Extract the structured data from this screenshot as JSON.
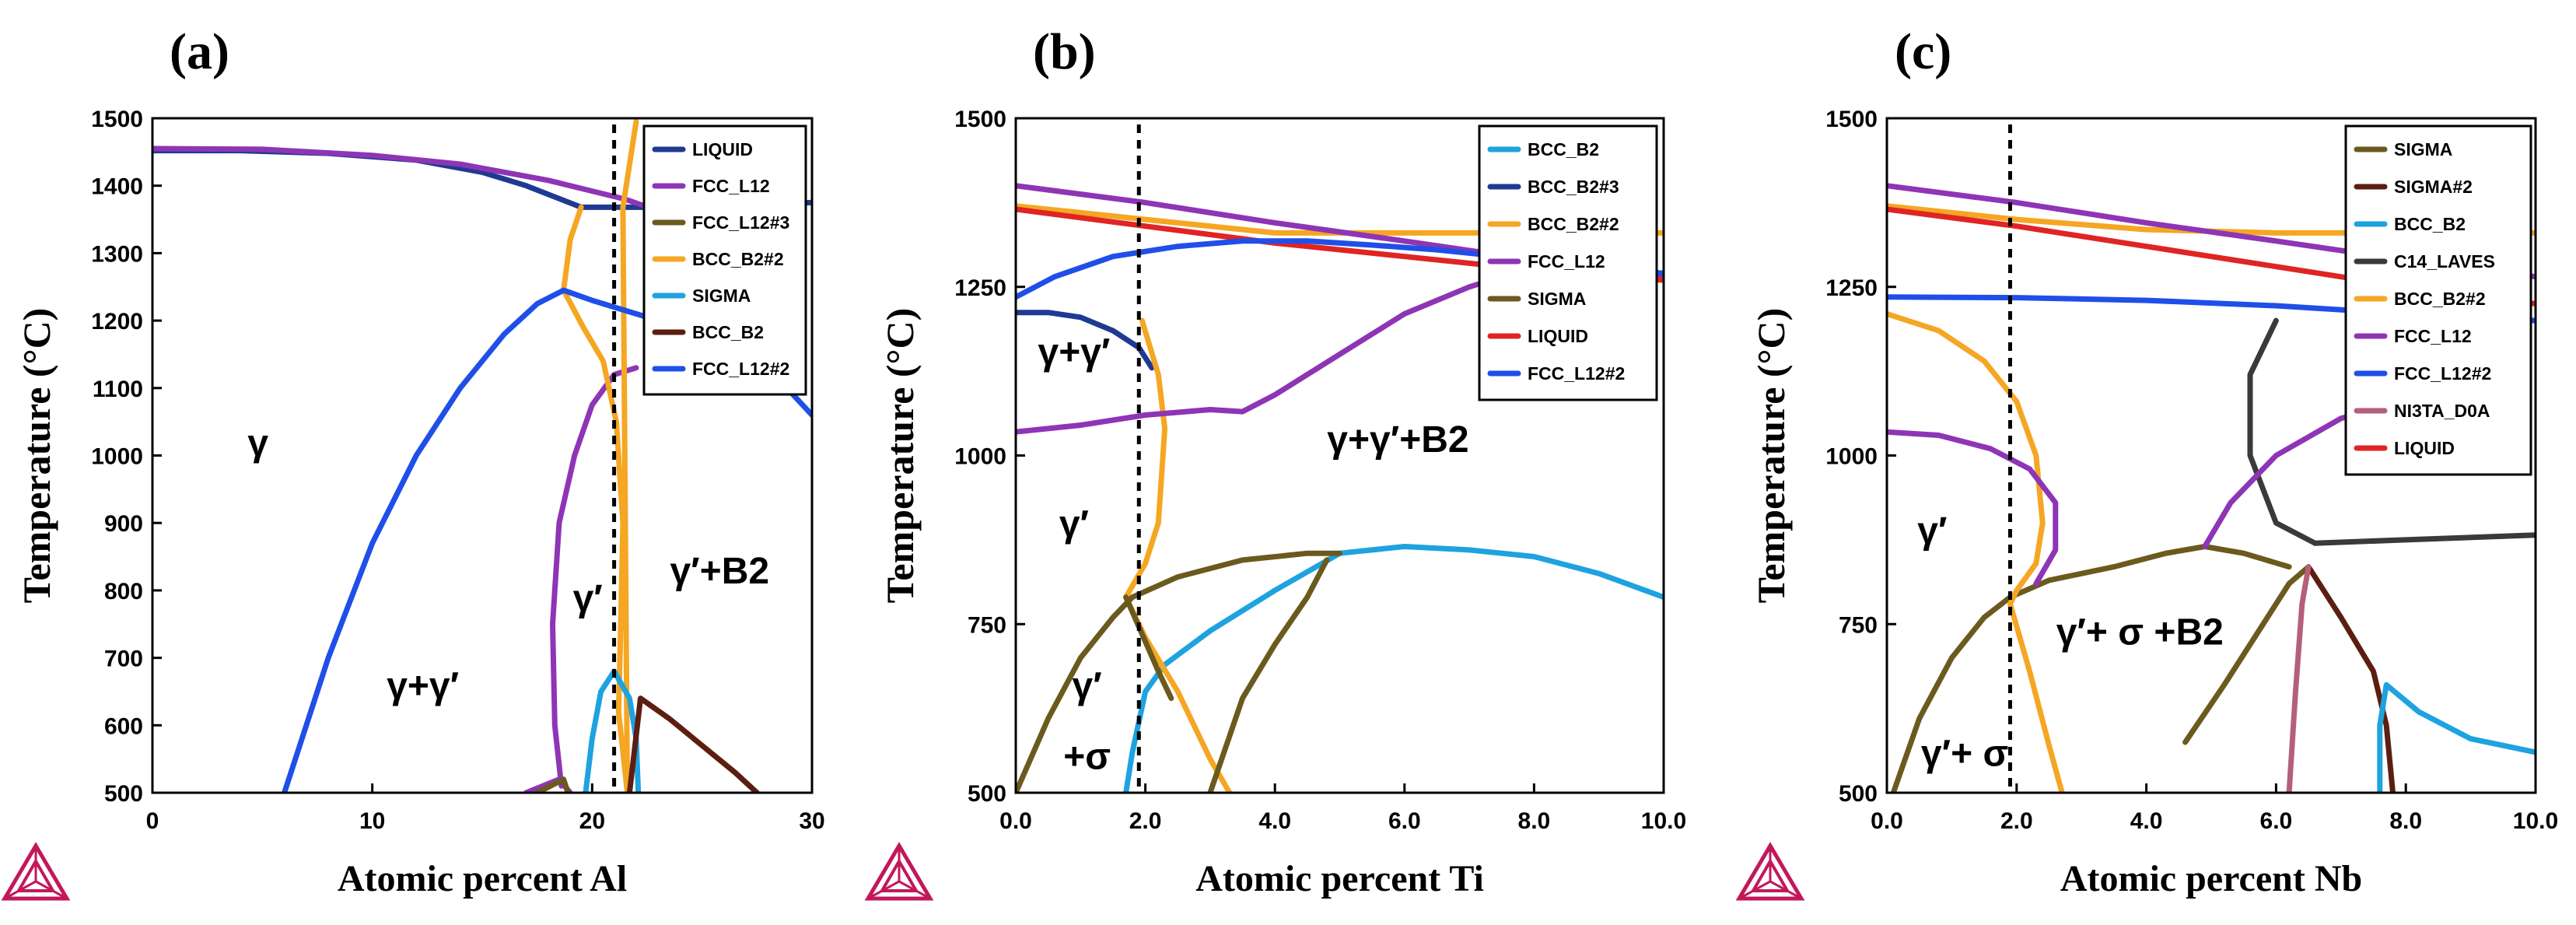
{
  "chart_data": [
    {
      "type": "line",
      "panel_label": "(a)",
      "title": "",
      "xlabel": "Atomic percent Al",
      "ylabel": "Temperature (°C)",
      "xlim": [
        0,
        30
      ],
      "ylim": [
        500,
        1500
      ],
      "xticks": [
        0,
        10,
        20,
        30
      ],
      "xtick_labels": [
        "0",
        "10",
        "20",
        "30"
      ],
      "yticks": [
        500,
        600,
        700,
        800,
        900,
        1000,
        1100,
        1200,
        1300,
        1400,
        1500
      ],
      "ytick_labels": [
        "500",
        "600",
        "700",
        "800",
        "900",
        "1000",
        "1100",
        "1200",
        "1300",
        "1400",
        "1500"
      ],
      "grid": false,
      "legend_position": "top-right",
      "marker_line_x": 21,
      "legend": [
        "LIQUID",
        "FCC_L12",
        "FCC_L12#3",
        "BCC_B2#2",
        "SIGMA",
        "BCC_B2",
        "FCC_L12#2"
      ],
      "series": [
        {
          "name": "LIQUID",
          "color": "#1f3a93",
          "x": [
            0,
            4,
            8,
            12,
            15,
            17,
            19.5,
            21,
            23,
            30
          ],
          "y": [
            1452,
            1452,
            1448,
            1438,
            1420,
            1400,
            1368,
            1368,
            1368,
            1375
          ]
        },
        {
          "name": "FCC_L12",
          "color": "#8e35b5",
          "x": [
            0,
            5,
            10,
            14,
            18,
            21.5,
            22.8
          ],
          "y": [
            1455,
            1454,
            1445,
            1432,
            1408,
            1380,
            1365
          ]
        },
        {
          "name": "FCC_L12",
          "color": "#8e35b5",
          "x": [
            18.6,
            18.3,
            18.2,
            18.5,
            19.2,
            20.0,
            21.0,
            22.0
          ],
          "y": [
            510,
            600,
            750,
            900,
            1000,
            1075,
            1120,
            1130
          ]
        },
        {
          "name": "FCC_L12",
          "color": "#8e35b5",
          "x": [
            17.0,
            18.5,
            19.0
          ],
          "y": [
            500,
            520,
            500
          ]
        },
        {
          "name": "FCC_L12#3",
          "color": "#6b5a1e",
          "x": [
            17.5,
            18.7,
            18.9
          ],
          "y": [
            500,
            520,
            500
          ]
        },
        {
          "name": "BCC_B2#2",
          "color": "#f5a623",
          "x": [
            19.5,
            19.0,
            18.7,
            19.6,
            20.5,
            21.1,
            21.4,
            21.3,
            21.2,
            21.6,
            21.4,
            22.0
          ],
          "y": [
            1368,
            1320,
            1245,
            1190,
            1140,
            1050,
            900,
            750,
            620,
            500,
            1368,
            1495
          ]
        },
        {
          "name": "SIGMA",
          "color": "#1fa2e0",
          "x": [
            19.7,
            20.0,
            20.4,
            21.0,
            21.7,
            22.0,
            22.1
          ],
          "y": [
            500,
            580,
            650,
            680,
            640,
            580,
            500
          ]
        },
        {
          "name": "BCC_B2",
          "color": "#5c1e10",
          "x": [
            21.7,
            22.2,
            23.5,
            25,
            26.5,
            27.5
          ],
          "y": [
            500,
            640,
            610,
            570,
            530,
            500
          ]
        },
        {
          "name": "FCC_L12#2",
          "color": "#1f4fe8",
          "x": [
            6,
            8,
            10,
            12,
            14,
            16,
            17.5,
            18.7,
            20,
            22,
            25,
            28,
            30
          ],
          "y": [
            500,
            700,
            870,
            1000,
            1100,
            1180,
            1225,
            1245,
            1230,
            1210,
            1180,
            1130,
            1060
          ]
        }
      ],
      "annotations": [
        {
          "text": "γ",
          "x": 4.8,
          "y": 1000
        },
        {
          "text": "γ+γ′",
          "x": 12.3,
          "y": 640
        },
        {
          "text": "γ′",
          "x": 19.8,
          "y": 770
        },
        {
          "text": "γ′+B2",
          "x": 25.8,
          "y": 810
        }
      ]
    },
    {
      "type": "line",
      "panel_label": "(b)",
      "title": "",
      "xlabel": "Atomic percent Ti",
      "ylabel": "Temperature (°C)",
      "xlim": [
        0,
        10
      ],
      "ylim": [
        500,
        1500
      ],
      "xticks": [
        0,
        2,
        4,
        6,
        8,
        10
      ],
      "xtick_labels": [
        "0.0",
        "2.0",
        "4.0",
        "6.0",
        "8.0",
        "10.0"
      ],
      "yticks": [
        500,
        750,
        1000,
        1250,
        1500
      ],
      "ytick_labels": [
        "500",
        "750",
        "1000",
        "1250",
        "1500"
      ],
      "grid": false,
      "legend_position": "top-right",
      "marker_line_x": 1.9,
      "legend": [
        "BCC_B2",
        "BCC_B2#3",
        "BCC_B2#2",
        "FCC_L12",
        "SIGMA",
        "LIQUID",
        "FCC_L12#2"
      ],
      "series": [
        {
          "name": "BCC_B2",
          "color": "#1fa2e0",
          "x": [
            1.7,
            1.8,
            2.0,
            2.3,
            3.0,
            4.0,
            5.0,
            6.0,
            7.0,
            8.0,
            9.0,
            10.0
          ],
          "y": [
            500,
            560,
            650,
            690,
            740,
            800,
            855,
            865,
            860,
            850,
            825,
            790
          ]
        },
        {
          "name": "BCC_B2#3",
          "color": "#1f3a93",
          "x": [
            0,
            0.5,
            1.0,
            1.5,
            1.9,
            2.1
          ],
          "y": [
            1212,
            1212,
            1205,
            1185,
            1160,
            1130
          ]
        },
        {
          "name": "BCC_B2#2",
          "color": "#f5a623",
          "x": [
            0,
            2,
            4,
            6,
            8,
            10
          ],
          "y": [
            1370,
            1350,
            1330,
            1330,
            1330,
            1330
          ]
        },
        {
          "name": "BCC_B2#2",
          "color": "#f5a623",
          "x": [
            1.95,
            2.2,
            2.3,
            2.2,
            2.0,
            1.7,
            2.0,
            2.5,
            3.0,
            3.3
          ],
          "y": [
            1200,
            1120,
            1040,
            900,
            840,
            790,
            730,
            650,
            550,
            500
          ]
        },
        {
          "name": "FCC_L12",
          "color": "#8e35b5",
          "x": [
            0,
            1,
            2,
            3,
            3.5,
            4,
            5,
            6,
            7,
            7.5
          ],
          "y": [
            1035,
            1045,
            1060,
            1068,
            1065,
            1090,
            1150,
            1210,
            1250,
            1265
          ]
        },
        {
          "name": "FCC_L12",
          "color": "#8e35b5",
          "x": [
            0,
            2,
            4,
            6,
            8,
            10
          ],
          "y": [
            1400,
            1375,
            1345,
            1318,
            1290,
            1265
          ]
        },
        {
          "name": "SIGMA",
          "color": "#6b5a1e",
          "x": [
            0,
            0.5,
            1.0,
            1.5,
            1.8,
            2.5,
            3.5,
            4.5,
            5.0
          ],
          "y": [
            500,
            610,
            700,
            760,
            790,
            820,
            845,
            855,
            855
          ]
        },
        {
          "name": "SIGMA",
          "color": "#6b5a1e",
          "x": [
            1.7,
            2.2,
            2.4
          ],
          "y": [
            790,
            680,
            640
          ]
        },
        {
          "name": "SIGMA",
          "color": "#6b5a1e",
          "x": [
            3.0,
            3.5,
            4.0,
            4.5,
            4.8
          ],
          "y": [
            500,
            640,
            720,
            790,
            845
          ]
        },
        {
          "name": "LIQUID",
          "color": "#e02424",
          "x": [
            0,
            2,
            4,
            6,
            8,
            10
          ],
          "y": [
            1365,
            1340,
            1315,
            1295,
            1275,
            1260
          ]
        },
        {
          "name": "FCC_L12#2",
          "color": "#1f4fe8",
          "x": [
            0,
            0.6,
            1.5,
            2.5,
            3.5,
            4.5,
            5.5,
            6.5,
            7.5,
            8.5,
            9.5,
            10
          ],
          "y": [
            1235,
            1265,
            1295,
            1310,
            1318,
            1318,
            1312,
            1305,
            1295,
            1285,
            1275,
            1270
          ]
        }
      ],
      "annotations": [
        {
          "text": "γ+γ′",
          "x": 0.9,
          "y": 1135
        },
        {
          "text": "γ+γ′+B2",
          "x": 5.9,
          "y": 1005
        },
        {
          "text": "γ′",
          "x": 0.9,
          "y": 880
        },
        {
          "text": "γ′",
          "x": 1.1,
          "y": 640
        },
        {
          "text": "+σ",
          "x": 1.1,
          "y": 535
        }
      ]
    },
    {
      "type": "line",
      "panel_label": "(c)",
      "title": "",
      "xlabel": "Atomic percent Nb",
      "ylabel": "Temperature (°C)",
      "xlim": [
        0,
        10
      ],
      "ylim": [
        500,
        1500
      ],
      "xticks": [
        0,
        2,
        4,
        6,
        8,
        10
      ],
      "xtick_labels": [
        "0.0",
        "2.0",
        "4.0",
        "6.0",
        "8.0",
        "10.0"
      ],
      "yticks": [
        500,
        750,
        1000,
        1250,
        1500
      ],
      "ytick_labels": [
        "500",
        "750",
        "1000",
        "1250",
        "1500"
      ],
      "grid": false,
      "legend_position": "top-right",
      "marker_line_x": 1.9,
      "legend": [
        "SIGMA",
        "SIGMA#2",
        "BCC_B2",
        "C14_LAVES",
        "BCC_B2#2",
        "FCC_L12",
        "FCC_L12#2",
        "NI3TA_D0A",
        "LIQUID"
      ],
      "series": [
        {
          "name": "SIGMA",
          "color": "#6b5a1e",
          "x": [
            0.1,
            0.5,
            1.0,
            1.5,
            1.9,
            2.5,
            3.5,
            4.3,
            4.9,
            5.5,
            6.2
          ],
          "y": [
            500,
            610,
            700,
            760,
            790,
            815,
            835,
            855,
            865,
            855,
            835
          ]
        },
        {
          "name": "SIGMA",
          "color": "#6b5a1e",
          "x": [
            4.6,
            5.2,
            5.8,
            6.2,
            6.5
          ],
          "y": [
            575,
            660,
            750,
            810,
            835
          ]
        },
        {
          "name": "SIGMA#2",
          "color": "#5c1e10",
          "x": [
            6.5,
            7.0,
            7.5,
            7.7,
            7.8
          ],
          "y": [
            835,
            760,
            680,
            600,
            500
          ]
        },
        {
          "name": "BCC_B2",
          "color": "#1fa2e0",
          "x": [
            7.6,
            7.6,
            7.7,
            8.2,
            9.0,
            10.0
          ],
          "y": [
            500,
            600,
            660,
            620,
            580,
            560
          ]
        },
        {
          "name": "C14_LAVES",
          "color": "#3a3a3a",
          "x": [
            6.0,
            5.6,
            5.6,
            6.0,
            6.6
          ],
          "y": [
            1200,
            1120,
            1000,
            900,
            870
          ]
        },
        {
          "name": "C14_LAVES",
          "color": "#3a3a3a",
          "x": [
            6.6,
            8.0,
            10.0
          ],
          "y": [
            870,
            875,
            882
          ]
        },
        {
          "name": "BCC_B2#2",
          "color": "#f5a623",
          "x": [
            0,
            2,
            4,
            6,
            8,
            10
          ],
          "y": [
            1370,
            1350,
            1335,
            1330,
            1330,
            1330
          ]
        },
        {
          "name": "BCC_B2#2",
          "color": "#f5a623",
          "x": [
            0,
            0.8,
            1.5,
            2.0,
            2.3,
            2.4,
            2.3,
            2.0,
            1.9,
            2.2,
            2.5,
            2.7
          ],
          "y": [
            1210,
            1185,
            1140,
            1080,
            1000,
            900,
            840,
            800,
            780,
            680,
            570,
            500
          ]
        },
        {
          "name": "FCC_L12",
          "color": "#8e35b5",
          "x": [
            0,
            0.8,
            1.6,
            2.2,
            2.6,
            2.6,
            2.3
          ],
          "y": [
            1035,
            1030,
            1010,
            980,
            930,
            860,
            810
          ]
        },
        {
          "name": "FCC_L12",
          "color": "#8e35b5",
          "x": [
            4.9,
            5.3,
            6.0,
            7.0,
            8.0
          ],
          "y": [
            865,
            930,
            1000,
            1055,
            1080
          ]
        },
        {
          "name": "FCC_L12",
          "color": "#8e35b5",
          "x": [
            0,
            2,
            4,
            6,
            8,
            10
          ],
          "y": [
            1400,
            1375,
            1345,
            1318,
            1290,
            1265
          ]
        },
        {
          "name": "FCC_L12#2",
          "color": "#1f4fe8",
          "x": [
            0,
            2,
            4,
            6,
            8,
            10
          ],
          "y": [
            1235,
            1234,
            1230,
            1222,
            1210,
            1200
          ]
        },
        {
          "name": "NI3TA_D0A",
          "color": "#b4607a",
          "x": [
            6.2,
            6.3,
            6.4,
            6.5
          ],
          "y": [
            500,
            650,
            780,
            835
          ]
        },
        {
          "name": "LIQUID",
          "color": "#e02424",
          "x": [
            0,
            2,
            4,
            6,
            8,
            10
          ],
          "y": [
            1365,
            1340,
            1310,
            1280,
            1250,
            1225
          ]
        }
      ],
      "annotations": [
        {
          "text": "γ′",
          "x": 0.7,
          "y": 870
        },
        {
          "text": "γ′+ σ +B2",
          "x": 3.9,
          "y": 720
        },
        {
          "text": "γ′+ σ",
          "x": 1.2,
          "y": 540
        }
      ]
    }
  ]
}
